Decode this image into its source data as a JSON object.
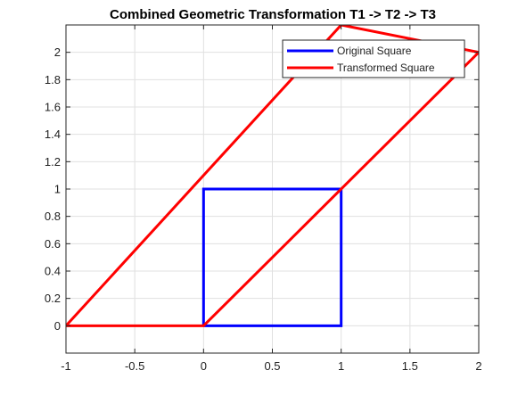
{
  "chart_data": {
    "type": "line",
    "title": "Combined Geometric Transformation T1 -> T2 -> T3",
    "xlabel": "",
    "ylabel": "",
    "xlim": [
      -1,
      2
    ],
    "ylim": [
      -0.2,
      2.2
    ],
    "grid": true,
    "legend_position": "top-right",
    "x_ticks": [
      {
        "value": -1,
        "label": "-1"
      },
      {
        "value": -0.5,
        "label": "-0.5"
      },
      {
        "value": 0,
        "label": "0"
      },
      {
        "value": 0.5,
        "label": "0.5"
      },
      {
        "value": 1,
        "label": "1"
      },
      {
        "value": 1.5,
        "label": "1.5"
      },
      {
        "value": 2,
        "label": "2"
      }
    ],
    "y_ticks": [
      {
        "value": 0,
        "label": "0"
      },
      {
        "value": 0.2,
        "label": "0.2"
      },
      {
        "value": 0.4,
        "label": "0.4"
      },
      {
        "value": 0.6,
        "label": "0.6"
      },
      {
        "value": 0.8,
        "label": "0.8"
      },
      {
        "value": 1,
        "label": "1"
      },
      {
        "value": 1.2,
        "label": "1.2"
      },
      {
        "value": 1.4,
        "label": "1.4"
      },
      {
        "value": 1.6,
        "label": "1.6"
      },
      {
        "value": 1.8,
        "label": "1.8"
      },
      {
        "value": 2,
        "label": "2"
      }
    ],
    "series": [
      {
        "name": "Original Square",
        "color": "#0000ff",
        "points": [
          [
            0,
            0
          ],
          [
            1,
            0
          ],
          [
            1,
            1
          ],
          [
            0,
            1
          ],
          [
            0,
            0
          ]
        ]
      },
      {
        "name": "Transformed Square",
        "color": "#ff0000",
        "points": [
          [
            -1,
            0
          ],
          [
            0,
            0
          ],
          [
            2,
            2
          ],
          [
            1,
            2.2
          ],
          [
            -1,
            0
          ]
        ]
      }
    ]
  }
}
